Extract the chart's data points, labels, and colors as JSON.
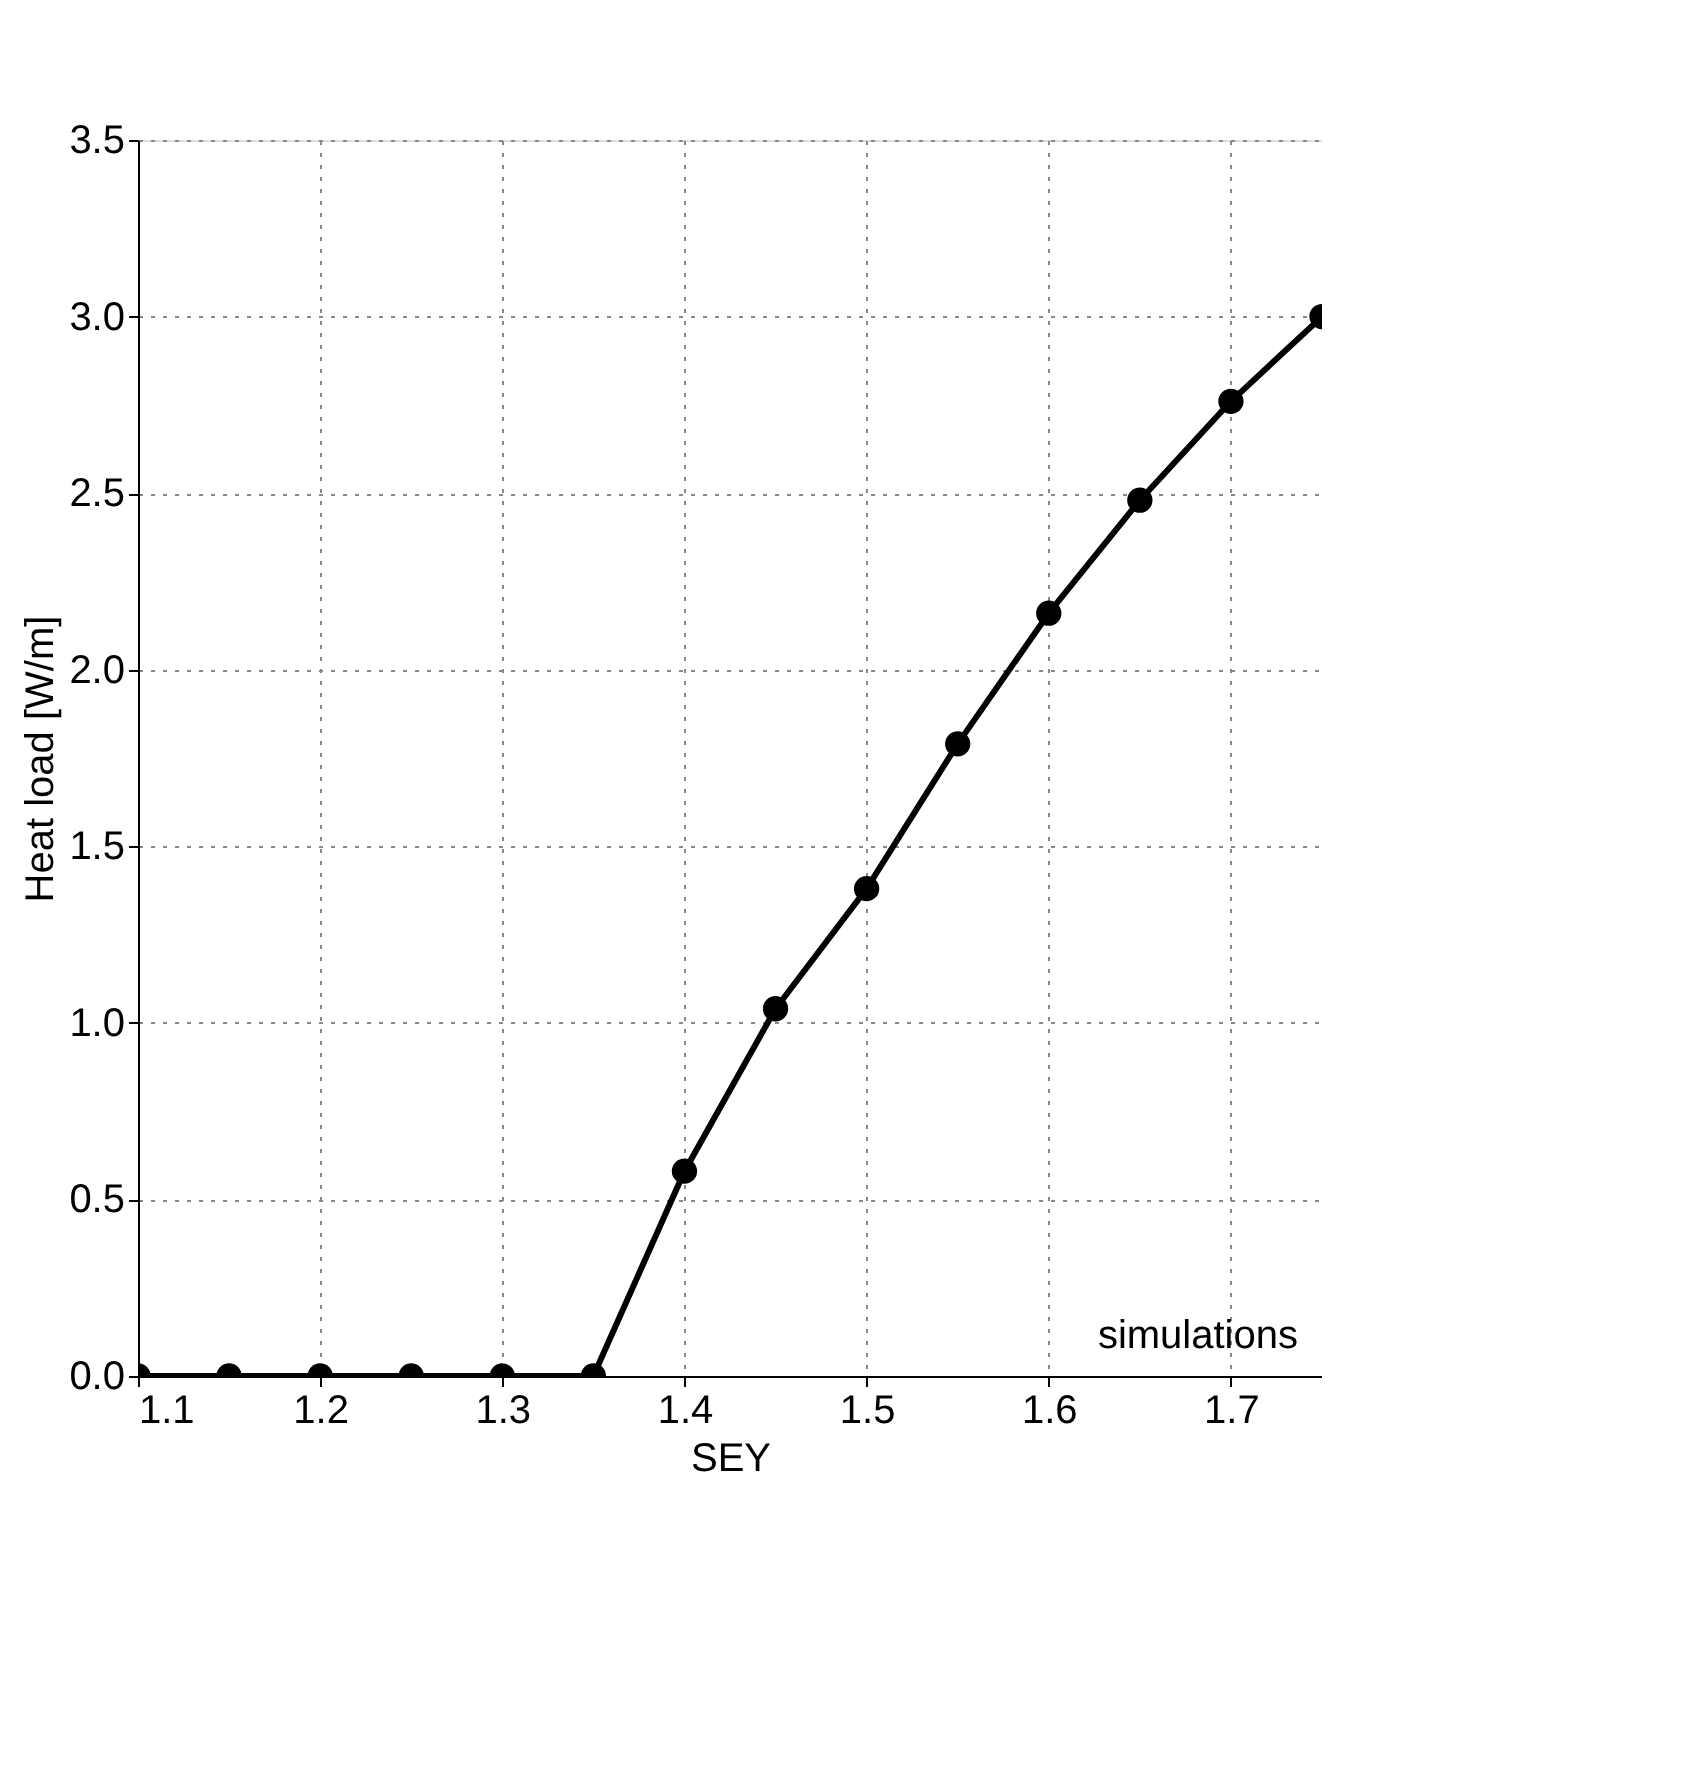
{
  "chart_data": {
    "type": "line",
    "xlabel": "SEY",
    "ylabel": "Heat load [W/m]",
    "x": [
      1.1,
      1.15,
      1.2,
      1.25,
      1.3,
      1.35,
      1.4,
      1.45,
      1.5,
      1.55,
      1.6,
      1.65,
      1.7,
      1.75
    ],
    "series": [
      {
        "color": "#000000",
        "values": [
          0,
          0,
          0,
          0,
          0,
          0,
          0.58,
          1.04,
          1.38,
          1.79,
          2.16,
          2.48,
          2.76,
          3.0
        ]
      }
    ],
    "xlim": [
      1.1,
      1.75
    ],
    "xticks": [
      1.1,
      1.2,
      1.3,
      1.4,
      1.5,
      1.6,
      1.7
    ],
    "ylim": [
      0,
      3.5
    ],
    "yticks": [
      {
        "value": 0,
        "label": "0.0"
      },
      0.5,
      {
        "value": 1,
        "label": "1.0"
      },
      1.5,
      {
        "value": 2,
        "label": "2.0"
      },
      2.5,
      {
        "value": 3,
        "label": "3.0"
      },
      3.5
    ],
    "grid": true,
    "marker": "circle",
    "line_style": "solid",
    "annotations": [
      "simulations"
    ]
  }
}
